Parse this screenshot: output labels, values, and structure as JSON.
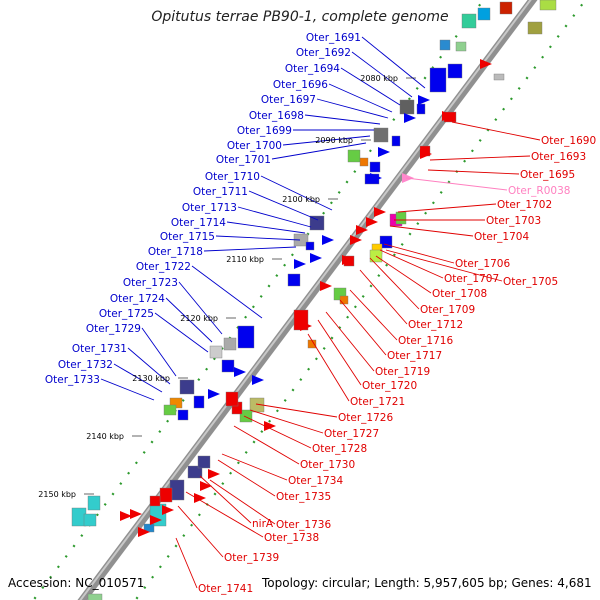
{
  "header": {
    "title": "Opitutus terrae PB90-1, complete genome"
  },
  "footer": {
    "accession": "Accession: NC_010571",
    "summary": "Topology: circular; Length: 5,957,605 bp; Genes: 4,681"
  },
  "scale_labels": [
    "2080 kbp",
    "2090 kbp",
    "2100 kbp",
    "2110 kbp",
    "2120 kbp",
    "2130 kbp",
    "2140 kbp",
    "2150 kbp"
  ],
  "colors": {
    "forward_labels": "#0000cc",
    "reverse_labels": "#e00000",
    "rna_label": "#ff80c0",
    "backbone": "#808080"
  },
  "left_genes": [
    {
      "label": "Oter_1691"
    },
    {
      "label": "Oter_1692"
    },
    {
      "label": "Oter_1694"
    },
    {
      "label": "Oter_1696"
    },
    {
      "label": "Oter_1697"
    },
    {
      "label": "Oter_1698"
    },
    {
      "label": "Oter_1699"
    },
    {
      "label": "Oter_1700"
    },
    {
      "label": "Oter_1701"
    },
    {
      "label": "Oter_1710"
    },
    {
      "label": "Oter_1711"
    },
    {
      "label": "Oter_1713"
    },
    {
      "label": "Oter_1714"
    },
    {
      "label": "Oter_1715"
    },
    {
      "label": "Oter_1718"
    },
    {
      "label": "Oter_1722"
    },
    {
      "label": "Oter_1723"
    },
    {
      "label": "Oter_1724"
    },
    {
      "label": "Oter_1725"
    },
    {
      "label": "Oter_1729"
    },
    {
      "label": "Oter_1731"
    },
    {
      "label": "Oter_1732"
    },
    {
      "label": "Oter_1733"
    }
  ],
  "right_genes": [
    {
      "label": "Oter_1690"
    },
    {
      "label": "Oter_1693"
    },
    {
      "label": "Oter_1695"
    },
    {
      "label": "Oter_R0038"
    },
    {
      "label": "Oter_1702"
    },
    {
      "label": "Oter_1703"
    },
    {
      "label": "Oter_1704"
    },
    {
      "label": "Oter_1706"
    },
    {
      "label": "Oter_1707"
    },
    {
      "label": "Oter_1705"
    },
    {
      "label": "Oter_1708"
    },
    {
      "label": "Oter_1709"
    },
    {
      "label": "Oter_1712"
    },
    {
      "label": "Oter_1716"
    },
    {
      "label": "Oter_1717"
    },
    {
      "label": "Oter_1719"
    },
    {
      "label": "Oter_1720"
    },
    {
      "label": "Oter_1721"
    },
    {
      "label": "Oter_1726"
    },
    {
      "label": "Oter_1727"
    },
    {
      "label": "Oter_1728"
    },
    {
      "label": "Oter_1730"
    },
    {
      "label": "Oter_1734"
    },
    {
      "label": "Oter_1735"
    },
    {
      "label": "nirA"
    },
    {
      "label": "Oter_1736"
    },
    {
      "label": "Oter_1738"
    },
    {
      "label": "Oter_1739"
    },
    {
      "label": "Oter_1741"
    }
  ]
}
